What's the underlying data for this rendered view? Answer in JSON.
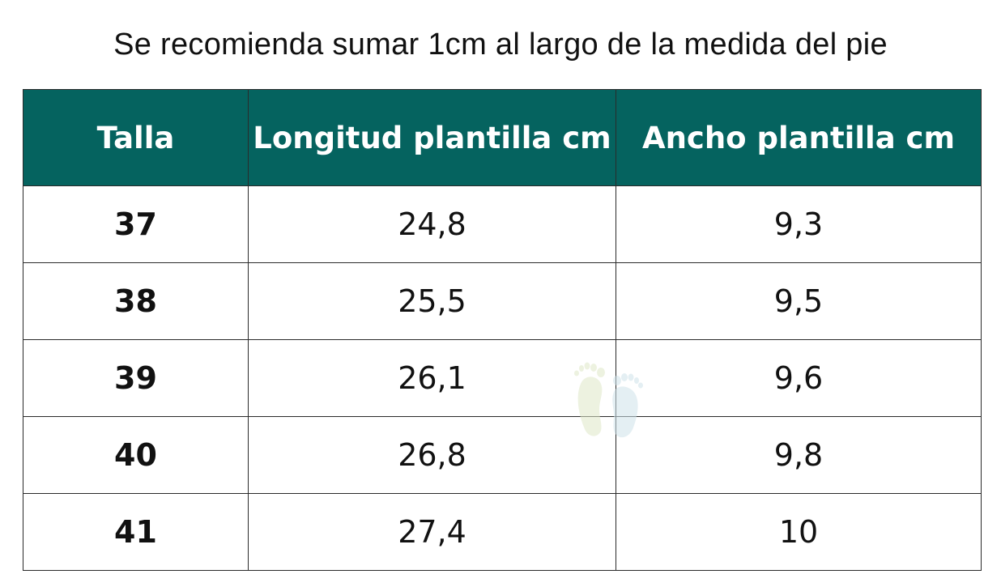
{
  "note": "Se recomienda sumar 1cm al largo de la medida del pie",
  "table": {
    "headers": [
      "Talla",
      "Longitud plantilla cm",
      "Ancho plantilla cm"
    ],
    "rows": [
      [
        "37",
        "24,8",
        "9,3"
      ],
      [
        "38",
        "25,5",
        "9,5"
      ],
      [
        "39",
        "26,1",
        "9,6"
      ],
      [
        "40",
        "26,8",
        "9,8"
      ],
      [
        "41",
        "27,4",
        "10"
      ]
    ]
  },
  "watermark_icon": "footprints-icon",
  "colors": {
    "header_bg": "#05635f",
    "header_text": "#ffffff",
    "border": "#2a2a2a"
  }
}
